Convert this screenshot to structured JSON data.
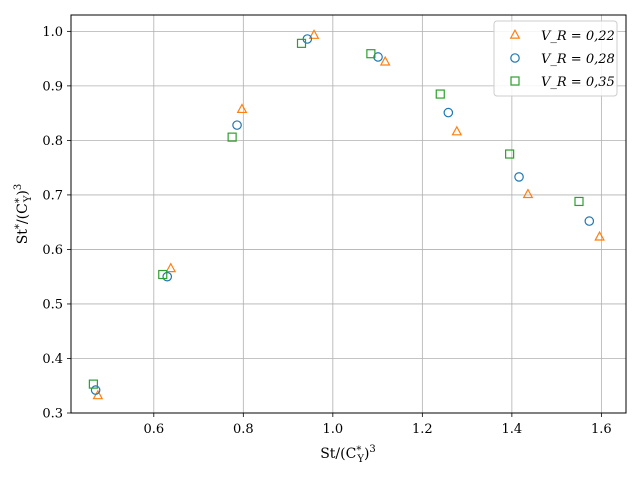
{
  "chart_data": {
    "type": "scatter",
    "title": "",
    "xlabel": "St/(C*_Y)^3",
    "ylabel": "St*/(C*_Y)^3",
    "xlim": [
      0.415,
      1.655
    ],
    "ylim": [
      0.3,
      1.03
    ],
    "xticks": [
      "0.6",
      "0.8",
      "1.0",
      "1.2",
      "1.4",
      "1.6"
    ],
    "yticks": [
      "0.3",
      "0.4",
      "0.5",
      "0.6",
      "0.7",
      "0.8",
      "0.9",
      "1.0"
    ],
    "grid": true,
    "legend_position": "top-right",
    "series": [
      {
        "name": "V_R = 0,22",
        "marker": "triangle",
        "color": "#ff7f0e",
        "points": [
          {
            "x": 0.475,
            "y": 0.332
          },
          {
            "x": 0.638,
            "y": 0.565
          },
          {
            "x": 0.797,
            "y": 0.857
          },
          {
            "x": 0.958,
            "y": 0.993
          },
          {
            "x": 1.117,
            "y": 0.944
          },
          {
            "x": 1.277,
            "y": 0.816
          },
          {
            "x": 1.436,
            "y": 0.701
          },
          {
            "x": 1.596,
            "y": 0.623
          }
        ]
      },
      {
        "name": "V_R = 0,28",
        "marker": "circle",
        "color": "#1f77b4",
        "points": [
          {
            "x": 0.47,
            "y": 0.342
          },
          {
            "x": 0.63,
            "y": 0.55
          },
          {
            "x": 0.786,
            "y": 0.828
          },
          {
            "x": 0.943,
            "y": 0.986
          },
          {
            "x": 1.101,
            "y": 0.953
          },
          {
            "x": 1.258,
            "y": 0.851
          },
          {
            "x": 1.416,
            "y": 0.733
          },
          {
            "x": 1.573,
            "y": 0.652
          }
        ]
      },
      {
        "name": "V_R = 0,35",
        "marker": "square",
        "color": "#2ca02c",
        "points": [
          {
            "x": 0.465,
            "y": 0.353
          },
          {
            "x": 0.62,
            "y": 0.554
          },
          {
            "x": 0.775,
            "y": 0.806
          },
          {
            "x": 0.93,
            "y": 0.978
          },
          {
            "x": 1.085,
            "y": 0.959
          },
          {
            "x": 1.24,
            "y": 0.885
          },
          {
            "x": 1.395,
            "y": 0.775
          },
          {
            "x": 1.55,
            "y": 0.688
          }
        ]
      }
    ]
  }
}
